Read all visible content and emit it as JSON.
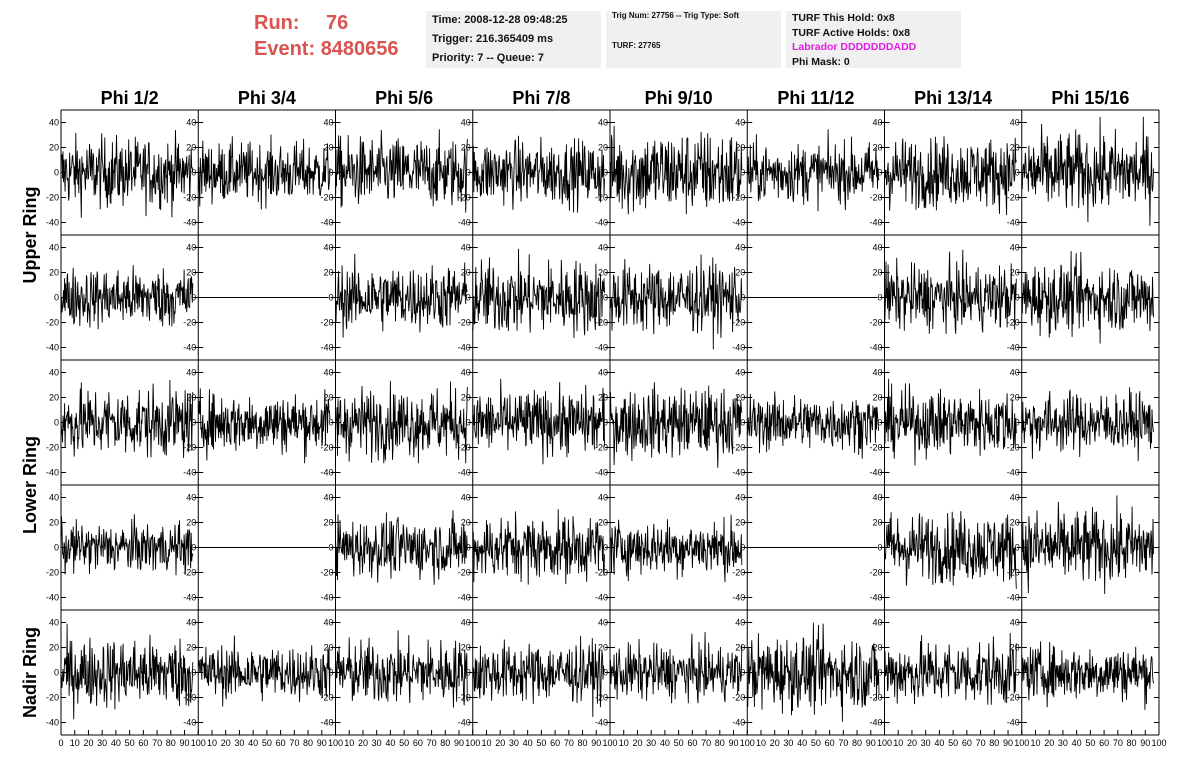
{
  "header": {
    "run_label": "Run:",
    "run_value": "76",
    "event_label": "Event:",
    "event_value": "8480656"
  },
  "info1": {
    "time": "Time: 2008-12-28 09:48:25",
    "trigger": "Trigger: 216.365409 ms",
    "priority": "Priority: 7 -- Queue: 7"
  },
  "info2": {
    "trig": "Trig Num: 27756 -- Trig Type: Soft",
    "turf": "TURF: 27765"
  },
  "info3": {
    "hold": "TURF This Hold: 0x8",
    "active": "TURF Active Holds: 0x8",
    "labrador": "Labrador DDDDDDDADD",
    "phimask": "Phi Mask: 0"
  },
  "colors": {
    "title": "#d9534f",
    "labrador": "#e020e0",
    "trace": "#000000",
    "box": "#f0f0f0"
  },
  "chart_data": {
    "type": "line",
    "columns": [
      "Phi 1/2",
      "Phi 3/4",
      "Phi 5/6",
      "Phi 7/8",
      "Phi 9/10",
      "Phi 11/12",
      "Phi 13/14",
      "Phi 15/16"
    ],
    "ring_labels": [
      "Upper Ring",
      "Lower Ring",
      "Nadir Ring"
    ],
    "xlim": [
      0,
      100
    ],
    "ylim": [
      -50,
      50
    ],
    "yticks": [
      -40,
      -20,
      0,
      20,
      40
    ],
    "xticks": [
      0,
      10,
      20,
      30,
      40,
      50,
      60,
      70,
      80,
      90,
      100
    ],
    "xtick_labels": [
      "0",
      "10",
      "20",
      "30",
      "40",
      "50",
      "60",
      "70",
      "80",
      "90",
      "100"
    ],
    "rows": [
      {
        "amps": [
          14,
          12,
          14,
          13,
          17,
          12,
          14,
          16
        ],
        "flat": [
          false,
          false,
          false,
          false,
          false,
          false,
          false,
          false
        ]
      },
      {
        "amps": [
          12,
          0,
          13,
          15,
          14,
          0,
          13,
          14
        ],
        "flat": [
          false,
          true,
          false,
          false,
          false,
          true,
          false,
          false
        ]
      },
      {
        "amps": [
          14,
          12,
          14,
          13,
          14,
          11,
          13,
          12
        ],
        "flat": [
          false,
          false,
          false,
          false,
          false,
          false,
          false,
          false
        ]
      },
      {
        "amps": [
          10,
          0,
          12,
          13,
          11,
          0,
          14,
          15
        ],
        "flat": [
          false,
          true,
          false,
          false,
          false,
          true,
          false,
          false
        ]
      },
      {
        "amps": [
          14,
          11,
          13,
          12,
          11,
          15,
          13,
          11
        ],
        "flat": [
          false,
          false,
          false,
          false,
          false,
          false,
          false,
          false
        ]
      }
    ]
  }
}
